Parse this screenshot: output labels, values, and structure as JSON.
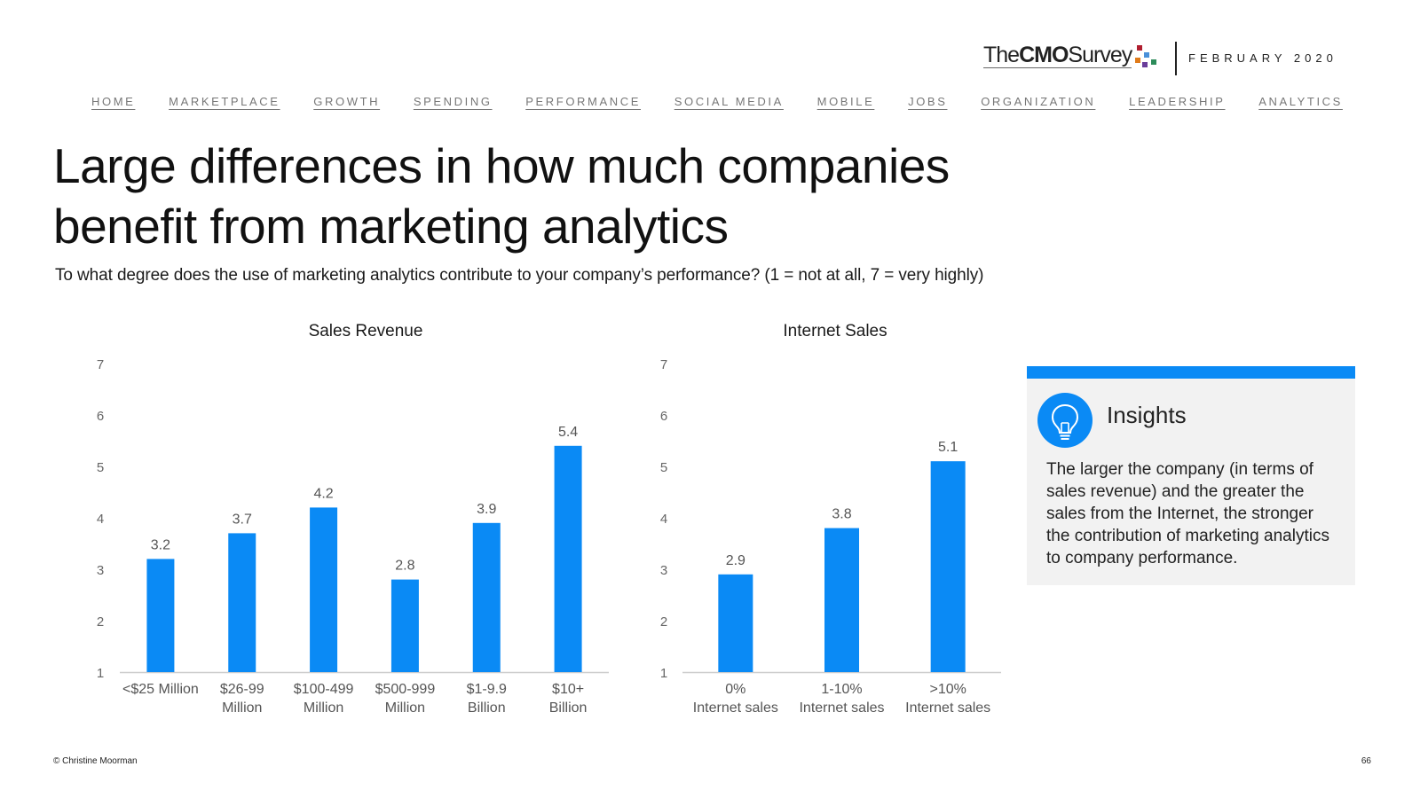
{
  "header": {
    "logo_the": "The",
    "logo_cmo": "CMO",
    "logo_survey": "Survey",
    "date": "FEBRUARY 2020"
  },
  "nav": [
    "HOME",
    "MARKETPLACE",
    "GROWTH",
    "SPENDING",
    "PERFORMANCE",
    "SOCIAL MEDIA",
    "MOBILE",
    "JOBS",
    "ORGANIZATION",
    "LEADERSHIP",
    "ANALYTICS"
  ],
  "title_line1": "Large differences in how much companies",
  "title_line2": "benefit from marketing analytics",
  "subtitle": "To what degree does the use of marketing analytics contribute to your company’s performance? (1 = not at all, 7 = very highly)",
  "insights": {
    "title": "Insights",
    "body": "The larger the company (in terms of sales revenue) and the greater the sales from the Internet, the stronger the contribution of marketing analytics to company performance."
  },
  "footer": {
    "copyright": "© Christine Moorman",
    "page": "66"
  },
  "colors": {
    "bar": "#0a8af5",
    "accent": "#0a8af5",
    "logo_dots": [
      "#b01e2f",
      "#4a90d9",
      "#e07b1a",
      "#2c8c5a",
      "#6a3d9a"
    ]
  },
  "chart_data": [
    {
      "type": "bar",
      "title": "Sales Revenue",
      "categories": [
        [
          "<$25 Million"
        ],
        [
          "$26-99",
          "Million"
        ],
        [
          "$100-499",
          "Million"
        ],
        [
          "$500-999",
          "Million"
        ],
        [
          "$1-9.9",
          "Billion"
        ],
        [
          "$10+",
          "Billion"
        ]
      ],
      "values": [
        3.2,
        3.7,
        4.2,
        2.8,
        3.9,
        5.4
      ],
      "ylim": [
        1,
        7
      ],
      "yticks": [
        1,
        2,
        3,
        4,
        5,
        6,
        7
      ],
      "xlabel": "",
      "ylabel": ""
    },
    {
      "type": "bar",
      "title": "Internet Sales",
      "categories": [
        [
          "0%",
          "Internet sales"
        ],
        [
          "1-10%",
          "Internet sales"
        ],
        [
          ">10%",
          "Internet sales"
        ]
      ],
      "values": [
        2.9,
        3.8,
        5.1
      ],
      "ylim": [
        1,
        7
      ],
      "yticks": [
        1,
        2,
        3,
        4,
        5,
        6,
        7
      ],
      "xlabel": "",
      "ylabel": ""
    }
  ]
}
